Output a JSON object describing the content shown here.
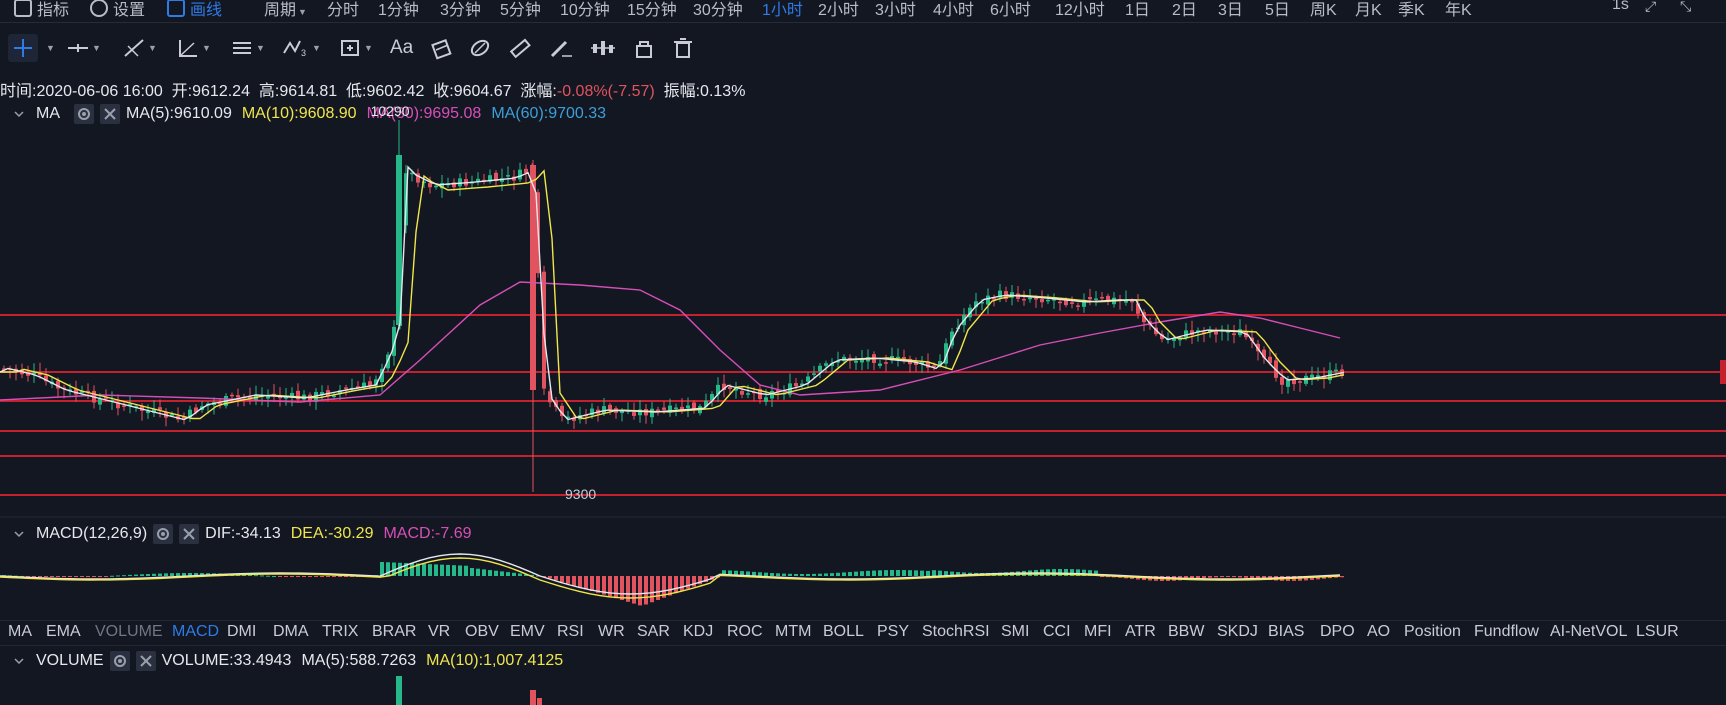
{
  "top_menu": {
    "indicators": "指标",
    "settings": "设置",
    "drawing": "画线",
    "periods_label": "周期",
    "periods": [
      "分时",
      "1分钟",
      "3分钟",
      "5分钟",
      "10分钟",
      "15分钟",
      "30分钟",
      "1小时",
      "2小时",
      "3小时",
      "4小时",
      "6小时",
      "12小时",
      "1日",
      "2日",
      "3日",
      "5日",
      "周K",
      "月K",
      "季K",
      "年K"
    ],
    "active_period": "1小时",
    "right_label": "1s"
  },
  "ohlc": {
    "time_label": "时间:",
    "time": "2020-06-06 16:00",
    "open_label": "开:",
    "open": "9612.24",
    "high_label": "高:",
    "high": "9614.81",
    "low_label": "低:",
    "low": "9602.42",
    "close_label": "收:",
    "close": "9604.67",
    "change_label": "涨幅:",
    "change": "-0.08%(-7.57)",
    "amp_label": "振幅:",
    "amp": "0.13%"
  },
  "ma_legend": {
    "name": "MA",
    "ma5": "MA(5):9610.09",
    "ma10": "MA(10):9608.90",
    "ma30": "MA(30):9695.08",
    "ma60": "MA(60):9700.33",
    "overlap_label": "10290",
    "colors": {
      "ma5": "#e6e8ed",
      "ma10": "#f0e64a",
      "ma30": "#d64fb7",
      "ma60": "#3c9fd9"
    }
  },
  "price_marker": "9300",
  "macd_legend": {
    "name": "MACD(12,26,9)",
    "dif": "DIF:-34.13",
    "dea": "DEA:-30.29",
    "macd": "MACD:-7.69"
  },
  "indicator_tabs": [
    "MA",
    "EMA",
    "VOLUME",
    "MACD",
    "DMI",
    "DMA",
    "TRIX",
    "BRAR",
    "VR",
    "OBV",
    "EMV",
    "RSI",
    "WR",
    "SAR",
    "KDJ",
    "ROC",
    "MTM",
    "BOLL",
    "PSY",
    "StochRSI",
    "SMI",
    "CCI",
    "MFI",
    "ATR",
    "BBW",
    "SKDJ",
    "BIAS",
    "DPO",
    "AO",
    "Position",
    "Fundflow",
    "AI-NetVOL",
    "LSUR"
  ],
  "active_indicator": "MACD",
  "dim_indicator": "VOLUME",
  "volume_legend": {
    "name": "VOLUME",
    "volume": "VOLUME:33.4943",
    "ma5": "MA(5):588.7263",
    "ma10": "MA(10):1,007.4125"
  },
  "colors": {
    "up": "#26b888",
    "down": "#e0535f",
    "hline": "#c4202e",
    "accent": "#2f7be6",
    "bg": "#131722"
  },
  "icons": [
    "crosshair-icon",
    "horizontal-line-icon",
    "trend-line-icon",
    "angle-icon",
    "parallel-channel-icon",
    "wave-icon",
    "rectangle-icon",
    "text-icon",
    "fib-icon",
    "brush-icon",
    "ruler-icon",
    "pencil-icon",
    "measure-icon",
    "lock-icon",
    "trash-icon"
  ]
}
